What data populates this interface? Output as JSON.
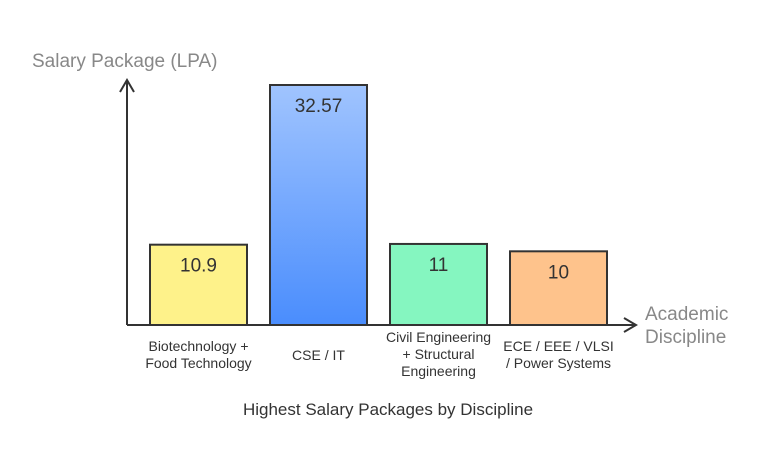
{
  "chart_data": {
    "type": "bar",
    "title": "Highest Salary Packages by Discipline",
    "ylabel": "Salary Package (LPA)",
    "xlabel": "Academic Discipline",
    "categories": [
      "Biotechnology + Food Technology",
      "CSE / IT",
      "Civil Engineering + Structural Engineering",
      "ECE / EEE / VLSI / Power Systems"
    ],
    "values": [
      10.9,
      32.57,
      11,
      10
    ],
    "value_labels": [
      "10.9",
      "32.57",
      "11",
      "10"
    ],
    "colors": [
      "#fef28a",
      "#4a8dfd",
      "#85f6c0",
      "#fec38c"
    ],
    "grid": false
  }
}
